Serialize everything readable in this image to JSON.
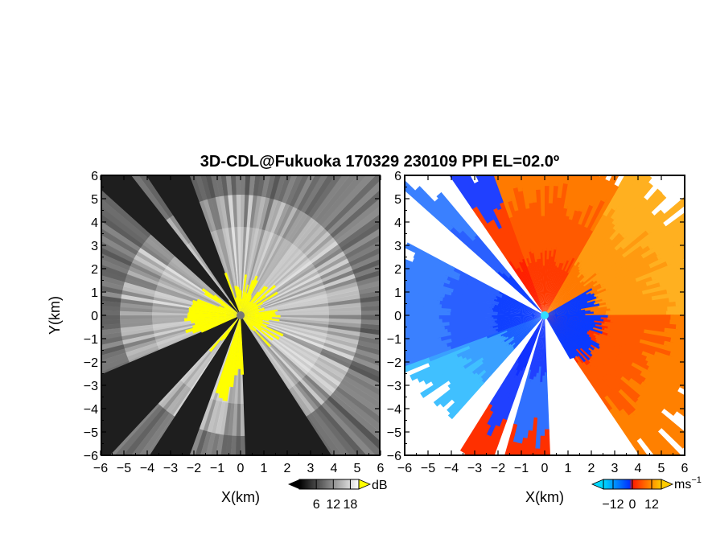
{
  "chart_data": [
    {
      "type": "heatmap",
      "panel": "left",
      "title": "3D-CDL@Fukuoka 170329 230109 PPI EL=02.0º",
      "xlabel": "X(km)",
      "ylabel": "Y(km)",
      "xlim": [
        -6,
        6
      ],
      "ylim": [
        -6,
        6
      ],
      "xticks": [
        "−6",
        "−5",
        "−4",
        "−3",
        "−2",
        "−1",
        "0",
        "1",
        "2",
        "3",
        "4",
        "5",
        "6"
      ],
      "yticks": [
        "6",
        "5",
        "4",
        "3",
        "2",
        "1",
        "0",
        "−1",
        "−2",
        "−3",
        "−4",
        "−5",
        "−6"
      ],
      "colorbar": {
        "unit": "dB",
        "ticks": [
          "6",
          "12",
          "18"
        ],
        "tick_values": [
          6,
          12,
          18
        ],
        "range": [
          0,
          21
        ],
        "colors": [
          "#000000",
          "#ffffff"
        ],
        "extend_color_high": "#ffff00"
      },
      "center_marker_color": "#777777",
      "blocked_sectors_deg": [
        [
          110,
          124
        ],
        [
          128,
          138
        ],
        [
          203,
          227
        ],
        [
          237,
          250
        ],
        [
          272,
          303
        ]
      ],
      "near_field_color": "#ffff00",
      "grid": false
    },
    {
      "type": "heatmap",
      "panel": "right",
      "xlabel": "X(km)",
      "xlim": [
        -6,
        6
      ],
      "ylim": [
        -6,
        6
      ],
      "xticks": [
        "−6",
        "−5",
        "−4",
        "−3",
        "−2",
        "−1",
        "0",
        "1",
        "2",
        "3",
        "4",
        "5",
        "6"
      ],
      "yticks": [
        "6",
        "5",
        "4",
        "3",
        "2",
        "1",
        "0",
        "−1",
        "−2",
        "−3",
        "−4",
        "−5",
        "−6"
      ],
      "colorbar": {
        "unit": "ms",
        "unit_exponent": "−1",
        "ticks": [
          "−12",
          "0",
          "12"
        ],
        "tick_values": [
          -12,
          0,
          12
        ],
        "range": [
          -18,
          18
        ],
        "colors": [
          "#00d8ff",
          "#0033ff",
          "#ff1a00",
          "#ffcc00"
        ]
      },
      "center_marker_color": "#33ddff",
      "background": "#ffffff",
      "grid": false
    }
  ]
}
